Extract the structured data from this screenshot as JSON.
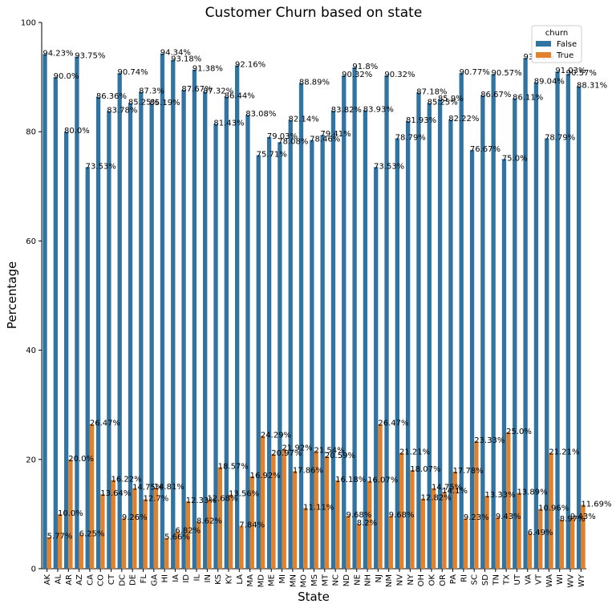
{
  "chart_data": {
    "type": "bar",
    "title": "Customer Churn based on state",
    "xlabel": "State",
    "ylabel": "Percentage",
    "ylim": [
      0,
      100
    ],
    "yticks": [
      0,
      20,
      40,
      60,
      80,
      100
    ],
    "categories": [
      "AK",
      "AL",
      "AR",
      "AZ",
      "CA",
      "CO",
      "CT",
      "DC",
      "DE",
      "FL",
      "GA",
      "HI",
      "IA",
      "ID",
      "IL",
      "IN",
      "KS",
      "KY",
      "LA",
      "MA",
      "MD",
      "ME",
      "MI",
      "MN",
      "MO",
      "MS",
      "MT",
      "NC",
      "ND",
      "NE",
      "NH",
      "NJ",
      "NM",
      "NV",
      "NY",
      "OH",
      "OK",
      "OR",
      "PA",
      "RI",
      "SC",
      "SD",
      "TN",
      "TX",
      "UT",
      "VA",
      "VT",
      "WA",
      "WI",
      "WV",
      "WY"
    ],
    "legend_title": "churn",
    "legend_position": "top-right",
    "series": [
      {
        "name": "False",
        "color": "#3274a1",
        "values": [
          94.23,
          90.0,
          80.0,
          93.75,
          73.53,
          86.36,
          83.78,
          90.74,
          85.25,
          87.3,
          85.19,
          94.34,
          93.18,
          87.67,
          91.38,
          87.32,
          81.43,
          86.44,
          92.16,
          83.08,
          75.71,
          79.03,
          78.08,
          82.14,
          88.89,
          78.46,
          79.41,
          83.82,
          90.32,
          91.8,
          83.93,
          73.53,
          90.32,
          78.79,
          81.93,
          87.18,
          85.25,
          85.9,
          82.22,
          90.77,
          76.67,
          86.67,
          90.57,
          75.0,
          86.11,
          93.51,
          89.04,
          78.79,
          91.03,
          90.57,
          88.31
        ],
        "labels": [
          "94.23%",
          "90.0%",
          "80.0%",
          "93.75%",
          "73.53%",
          "86.36%",
          "83.78%",
          "90.74%",
          "85.25%",
          "87.3%",
          "85.19%",
          "94.34%",
          "93.18%",
          "87.67%",
          "91.38%",
          "87.32%",
          "81.43%",
          "86.44%",
          "92.16%",
          "83.08%",
          "75.71%",
          "79.03%",
          "78.08%",
          "82.14%",
          "88.89%",
          "78.46%",
          "79.41%",
          "83.82%",
          "90.32%",
          "91.8%",
          "83.93%",
          "73.53%",
          "90.32%",
          "78.79%",
          "81.93%",
          "87.18%",
          "85.25%",
          "85.9%",
          "82.22%",
          "90.77%",
          "76.67%",
          "86.67%",
          "90.57%",
          "75.0%",
          "86.11%",
          "93.51%",
          "89.04%",
          "78.79%",
          "91.03%",
          "90.57%",
          "88.31%"
        ]
      },
      {
        "name": "True",
        "color": "#e1812c",
        "values": [
          5.77,
          10.0,
          20.0,
          6.25,
          26.47,
          13.64,
          16.22,
          9.26,
          14.75,
          12.7,
          14.81,
          5.66,
          6.82,
          12.33,
          8.62,
          12.68,
          18.57,
          13.56,
          7.84,
          16.92,
          24.29,
          20.97,
          21.92,
          17.86,
          11.11,
          21.54,
          20.59,
          16.18,
          9.68,
          8.2,
          16.07,
          26.47,
          9.68,
          21.21,
          18.07,
          12.82,
          14.75,
          14.1,
          17.78,
          9.23,
          23.33,
          13.33,
          9.43,
          25.0,
          13.89,
          6.49,
          10.96,
          21.21,
          8.97,
          9.43,
          11.69
        ],
        "labels": [
          "5.77%",
          "10.0%",
          "20.0%",
          "6.25%",
          "26.47%",
          "13.64%",
          "16.22%",
          "9.26%",
          "14.75%",
          "12.7%",
          "14.81%",
          "5.66%",
          "6.82%",
          "12.33%",
          "8.62%",
          "12.68%",
          "18.57%",
          "13.56%",
          "7.84%",
          "16.92%",
          "24.29%",
          "20.97%",
          "21.92%",
          "17.86%",
          "11.11%",
          "21.54%",
          "20.59%",
          "16.18%",
          "9.68%",
          "8.2%",
          "16.07%",
          "26.47%",
          "9.68%",
          "21.21%",
          "18.07%",
          "12.82%",
          "14.75%",
          "14.1%",
          "17.78%",
          "9.23%",
          "23.33%",
          "13.33%",
          "9.43%",
          "25.0%",
          "13.89%",
          "6.49%",
          "10.96%",
          "21.21%",
          "8.97%",
          "9.43%",
          "11.69%"
        ]
      }
    ]
  }
}
